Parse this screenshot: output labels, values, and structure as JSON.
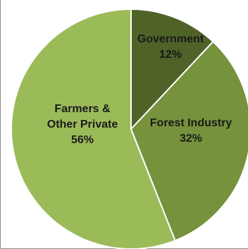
{
  "chart_data": {
    "type": "pie",
    "title": "",
    "slices": [
      {
        "label": "Government",
        "value": 12,
        "value_label": "12%",
        "color": "#4f6228"
      },
      {
        "label": "Forest Industry",
        "value": 32,
        "value_label": "32%",
        "color": "#76923c"
      },
      {
        "label": "Farmers & Other Private",
        "value": 56,
        "value_label": "56%",
        "color": "#9bbb59"
      }
    ],
    "start_angle_deg": 0,
    "direction": "clockwise",
    "legend": "none",
    "labels": "inside"
  }
}
